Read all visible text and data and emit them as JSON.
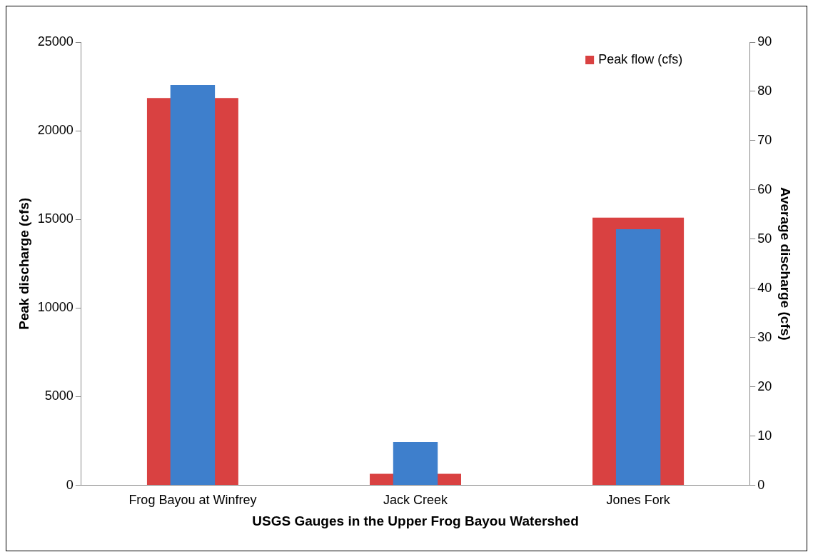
{
  "chart_data": {
    "type": "bar",
    "xlabel": "USGS Gauges in the Upper Frog Bayou Watershed",
    "ylabel": "Peak discharge (cfs)",
    "y2label": "Average discharge (cfs)",
    "categories": [
      "Frog Bayou at Winfrey",
      "Jack Creek",
      "Jones Fork"
    ],
    "series": [
      {
        "name": "Peak flow (cfs)",
        "color": "#d94141",
        "values": [
          21850,
          650,
          15100
        ]
      },
      {
        "color": "#3e7fcc",
        "axis": "y2",
        "values": [
          81.3,
          8.8,
          52.0
        ]
      }
    ],
    "ylim": [
      0,
      25000
    ],
    "yticks": [
      0,
      5000,
      10000,
      15000,
      20000,
      25000
    ],
    "y2lim": [
      0,
      90
    ],
    "y2ticks": [
      0,
      10,
      20,
      30,
      40,
      50,
      60,
      70,
      80,
      90
    ],
    "grid": false,
    "legend": "top right"
  }
}
